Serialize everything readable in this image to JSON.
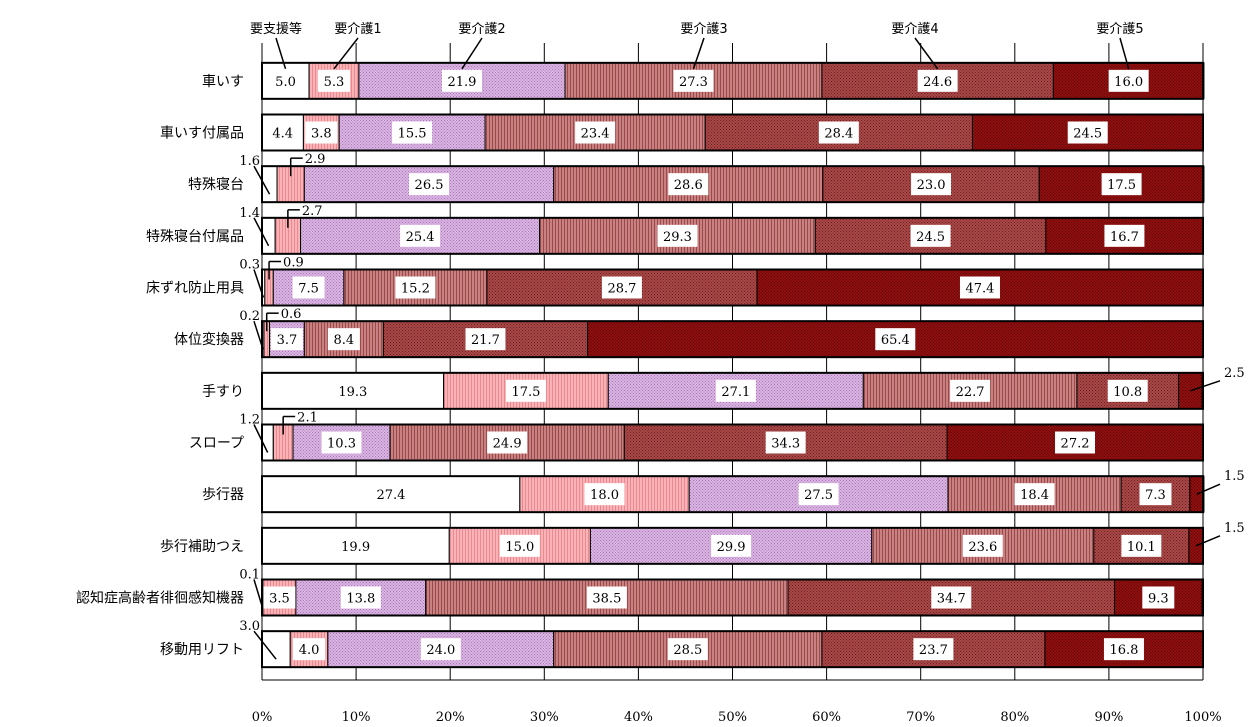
{
  "chart_data": {
    "type": "bar",
    "orientation": "horizontal",
    "stacked": "percent",
    "xlim": [
      0,
      100
    ],
    "x_ticks": [
      "0%",
      "10%",
      "20%",
      "30%",
      "40%",
      "50%",
      "60%",
      "70%",
      "80%",
      "90%",
      "100%"
    ],
    "grid": "vertical",
    "legend": "top",
    "categories": [
      "車いす",
      "車いす付属品",
      "特殊寝台",
      "特殊寝台付属品",
      "床ずれ防止用具",
      "体位変換器",
      "手すり",
      "スロープ",
      "歩行器",
      "歩行補助つえ",
      "認知症高齢者徘徊感知機器",
      "移動用リフト"
    ],
    "series": [
      {
        "name": "要支援等",
        "color": "#ffffff",
        "pattern": "none",
        "values": [
          5.0,
          4.4,
          1.6,
          1.4,
          0.3,
          0.2,
          19.3,
          1.2,
          27.4,
          19.9,
          0.1,
          3.0
        ]
      },
      {
        "name": "要介護1",
        "color": "#f9b3b6",
        "pattern": "vlines",
        "values": [
          5.3,
          3.8,
          2.9,
          2.7,
          0.9,
          0.6,
          17.5,
          2.1,
          18.0,
          15.0,
          3.5,
          4.0
        ]
      },
      {
        "name": "要介護2",
        "color": "#d4a3dc",
        "pattern": "dots",
        "values": [
          21.9,
          15.5,
          26.5,
          25.4,
          7.5,
          3.7,
          27.1,
          10.3,
          27.5,
          29.9,
          13.8,
          24.0
        ]
      },
      {
        "name": "要介護3",
        "color": "#bf6e6e",
        "pattern": "vlines",
        "values": [
          27.3,
          23.4,
          28.6,
          29.3,
          15.2,
          8.4,
          22.7,
          24.9,
          18.4,
          23.6,
          38.5,
          28.5
        ]
      },
      {
        "name": "要介護4",
        "color": "#9e3b3b",
        "pattern": "dots",
        "values": [
          24.6,
          28.4,
          23.0,
          24.5,
          28.7,
          21.7,
          10.8,
          34.3,
          7.3,
          10.1,
          34.7,
          23.7
        ]
      },
      {
        "name": "要介護5",
        "color": "#870a0a",
        "pattern": "dots",
        "values": [
          16.0,
          24.5,
          17.5,
          16.7,
          47.4,
          65.4,
          2.5,
          27.2,
          1.5,
          1.5,
          9.3,
          16.8
        ]
      }
    ]
  }
}
